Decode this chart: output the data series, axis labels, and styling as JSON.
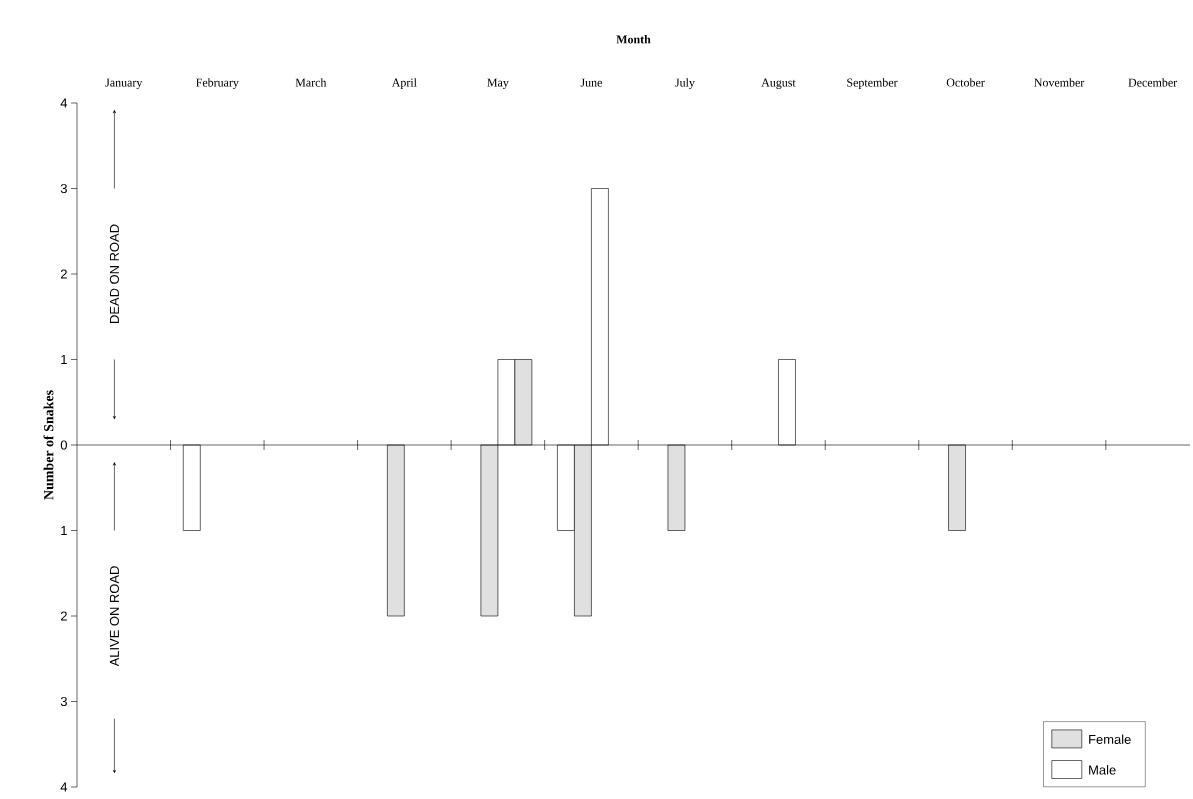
{
  "chart_data": {
    "type": "bar",
    "xlabel": "Month",
    "ylabel": "Number of Snakes",
    "categories": [
      "January",
      "February",
      "March",
      "April",
      "May",
      "June",
      "July",
      "August",
      "September",
      "October",
      "November",
      "December"
    ],
    "series": [
      {
        "name": "Male",
        "color": "#ffffff",
        "values": [
          null,
          -1,
          null,
          null,
          null,
          -1,
          null,
          null,
          null,
          null,
          null,
          null
        ]
      },
      {
        "name": "Female",
        "color": "#e0e0e0",
        "values": [
          null,
          null,
          null,
          -2,
          -2,
          -2,
          -1,
          null,
          null,
          -1,
          null,
          null
        ]
      },
      {
        "color": "#ffffff",
        "values": [
          null,
          null,
          null,
          null,
          1,
          3,
          null,
          1,
          null,
          null,
          null,
          null
        ]
      },
      {
        "color": "#e0e0e0",
        "values": [
          null,
          null,
          null,
          null,
          1,
          null,
          null,
          null,
          null,
          null,
          null,
          null
        ]
      }
    ],
    "ylim": [
      -4,
      4
    ],
    "yticks": [
      {
        "value": -4,
        "label": "4"
      },
      {
        "value": -3,
        "label": "3"
      },
      {
        "value": -2,
        "label": "2"
      },
      {
        "value": -1,
        "label": "1"
      },
      0,
      1,
      2,
      3,
      4
    ],
    "annotations": [
      "DEAD ON ROAD",
      "ALIVE  ON ROAD"
    ],
    "legend": "bottom right"
  }
}
